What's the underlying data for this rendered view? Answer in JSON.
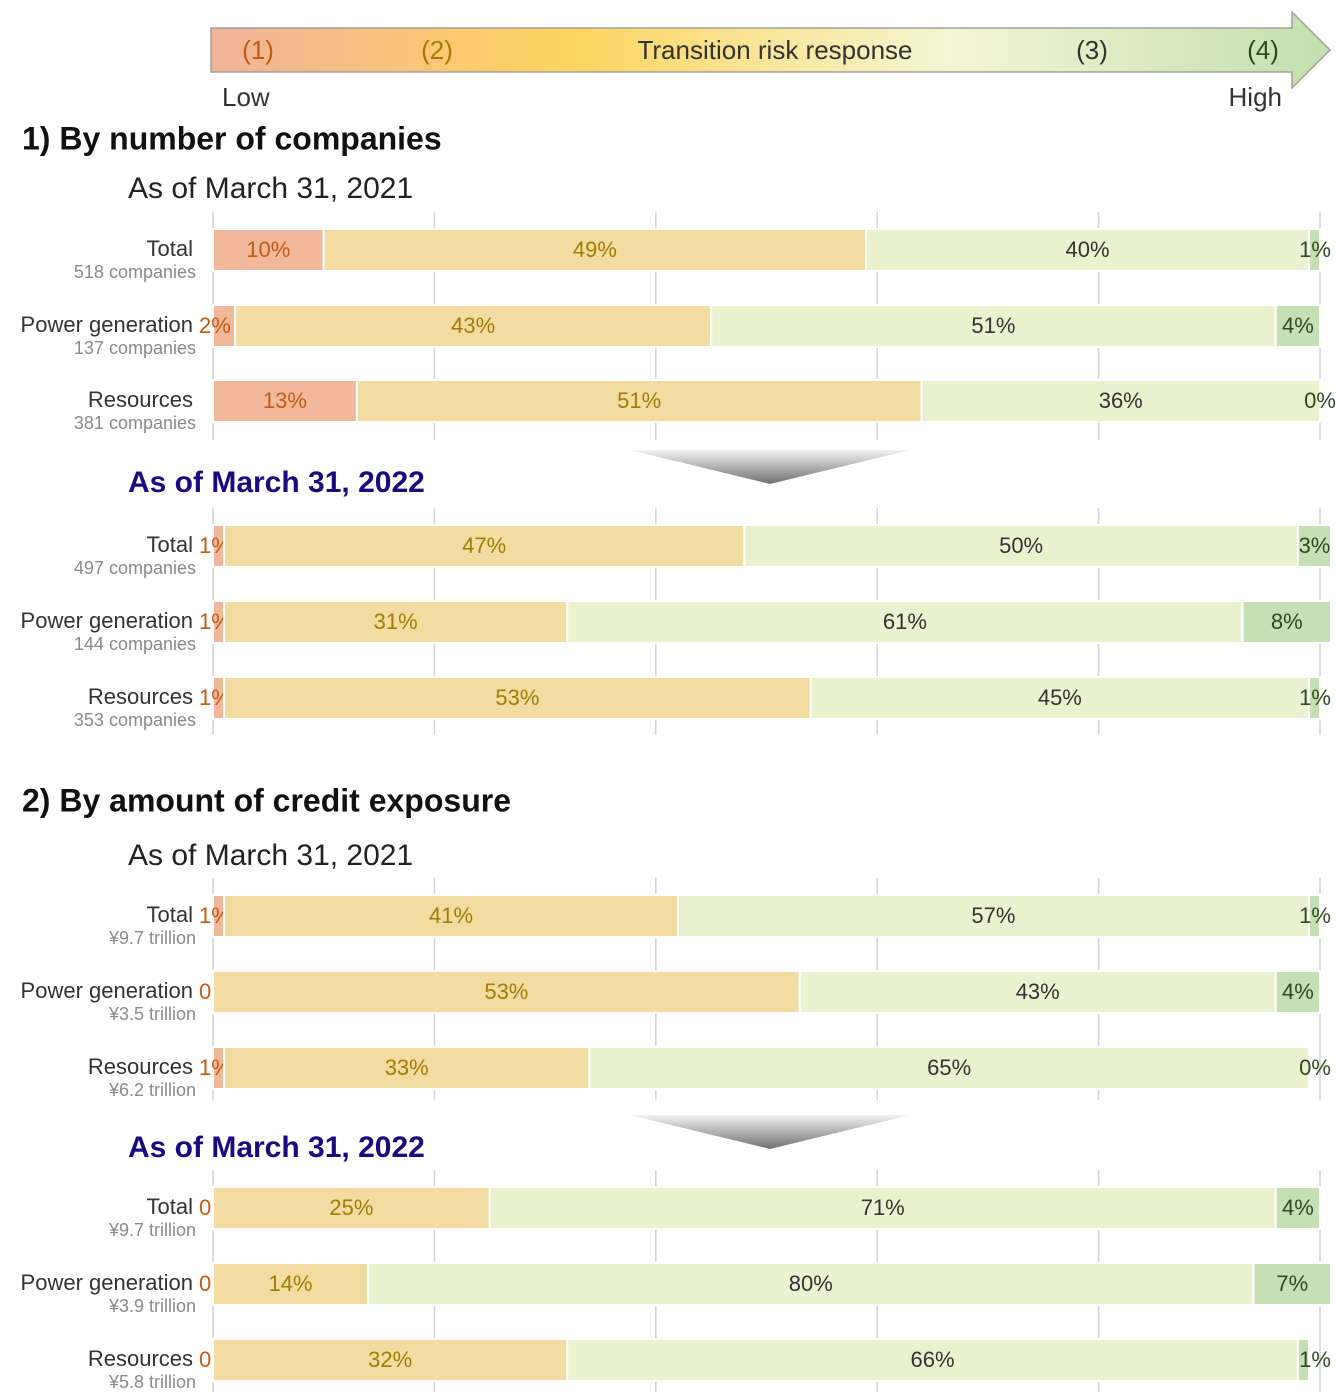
{
  "scale": {
    "levels": [
      "(1)",
      "(2)",
      "(3)",
      "(4)"
    ],
    "title": "Transition risk response",
    "low": "Low",
    "high": "High"
  },
  "sections": [
    "1) By number of companies",
    "2) By amount of credit exposure"
  ],
  "chart_data": [
    {
      "type": "bar",
      "orientation": "horizontal",
      "stacked": true,
      "title": "As of March 31, 2021",
      "categories": [
        "Total",
        "Power generation",
        "Resources"
      ],
      "sublabels": [
        "518 companies",
        "137 companies",
        "381 companies"
      ],
      "xlim": [
        0,
        100
      ],
      "xticks": [
        0,
        20,
        40,
        60,
        80,
        100
      ],
      "grid": true,
      "series": [
        {
          "color": "#f2b89c",
          "values": [
            10,
            2,
            13
          ],
          "value_labels": [
            "10%",
            "2%",
            "13%"
          ]
        },
        {
          "color": "#f2dca2",
          "values": [
            49,
            43,
            51
          ],
          "value_labels": [
            "49%",
            "43%",
            "51%"
          ]
        },
        {
          "color": "#ebf2d0",
          "values": [
            40,
            51,
            36
          ],
          "value_labels": [
            "40%",
            "51%",
            "36%"
          ]
        },
        {
          "color": "#c5e0b5",
          "values": [
            1,
            4,
            0
          ],
          "value_labels": [
            "1%",
            "4%",
            "0%"
          ]
        }
      ]
    },
    {
      "type": "bar",
      "orientation": "horizontal",
      "stacked": true,
      "title": "As of March 31, 2022",
      "categories": [
        "Total",
        "Power generation",
        "Resources"
      ],
      "sublabels": [
        "497 companies",
        "144 companies",
        "353 companies"
      ],
      "xlim": [
        0,
        100
      ],
      "xticks": [
        0,
        20,
        40,
        60,
        80,
        100
      ],
      "grid": true,
      "series": [
        {
          "color": "#f2b89c",
          "values": [
            1,
            1,
            1
          ],
          "value_labels": [
            "1%",
            "1%",
            "1%"
          ]
        },
        {
          "color": "#f2dca2",
          "values": [
            47,
            31,
            53
          ],
          "value_labels": [
            "47%",
            "31%",
            "53%"
          ]
        },
        {
          "color": "#ebf2d0",
          "values": [
            50,
            61,
            45
          ],
          "value_labels": [
            "50%",
            "61%",
            "45%"
          ]
        },
        {
          "color": "#c5e0b5",
          "values": [
            3,
            8,
            1
          ],
          "value_labels": [
            "3%",
            "8%",
            "1%"
          ]
        }
      ]
    },
    {
      "type": "bar",
      "orientation": "horizontal",
      "stacked": true,
      "title": "As of March 31, 2021",
      "categories": [
        "Total",
        "Power generation",
        "Resources"
      ],
      "sublabels": [
        "¥9.7 trillion",
        "¥3.5 trillion",
        "¥6.2 trillion"
      ],
      "xlim": [
        0,
        100
      ],
      "xticks": [
        0,
        20,
        40,
        60,
        80,
        100
      ],
      "grid": true,
      "series": [
        {
          "color": "#f2b89c",
          "values": [
            1,
            0,
            1
          ],
          "value_labels": [
            "1%",
            "0%",
            "1%"
          ]
        },
        {
          "color": "#f2dca2",
          "values": [
            41,
            53,
            33
          ],
          "value_labels": [
            "41%",
            "53%",
            "33%"
          ]
        },
        {
          "color": "#ebf2d0",
          "values": [
            57,
            43,
            65
          ],
          "value_labels": [
            "57%",
            "43%",
            "65%"
          ]
        },
        {
          "color": "#c5e0b5",
          "values": [
            1,
            4,
            0
          ],
          "value_labels": [
            "1%",
            "4%",
            "0%"
          ]
        }
      ]
    },
    {
      "type": "bar",
      "orientation": "horizontal",
      "stacked": true,
      "title": "As of March 31, 2022",
      "categories": [
        "Total",
        "Power generation",
        "Resources"
      ],
      "sublabels": [
        "¥9.7 trillion",
        "¥3.9 trillion",
        "¥5.8 trillion"
      ],
      "xlim": [
        0,
        100
      ],
      "xticks": [
        0,
        20,
        40,
        60,
        80,
        100
      ],
      "grid": true,
      "series": [
        {
          "color": "#f2b89c",
          "values": [
            0,
            0,
            0
          ],
          "value_labels": [
            "0%",
            "0%",
            "0%"
          ]
        },
        {
          "color": "#f2dca2",
          "values": [
            25,
            14,
            32
          ],
          "value_labels": [
            "25%",
            "14%",
            "32%"
          ]
        },
        {
          "color": "#ebf2d0",
          "values": [
            71,
            80,
            66
          ],
          "value_labels": [
            "71%",
            "80%",
            "66%"
          ]
        },
        {
          "color": "#c5e0b5",
          "values": [
            4,
            7,
            1
          ],
          "value_labels": [
            "4%",
            "7%",
            "1%"
          ]
        }
      ]
    }
  ]
}
